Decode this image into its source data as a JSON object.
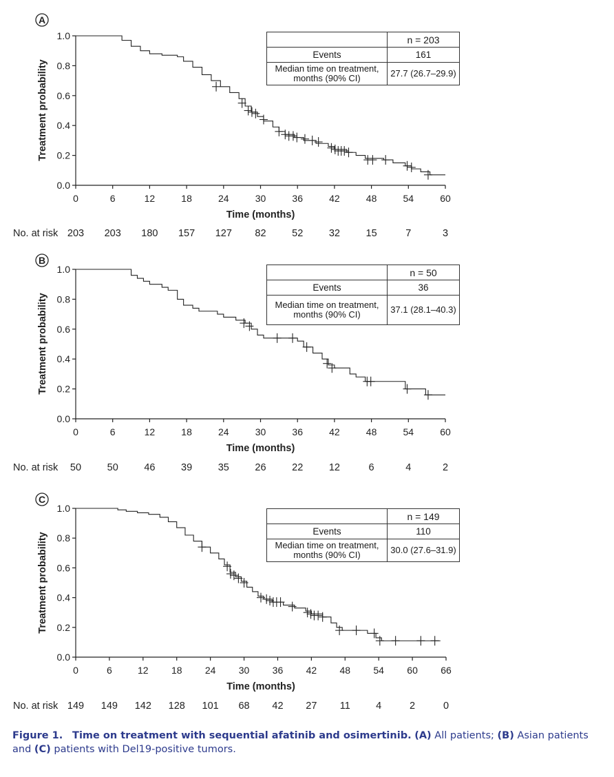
{
  "colors": {
    "line": "#222222",
    "caption": "#2c3a8c"
  },
  "caption": {
    "prefix": "Figure 1.",
    "title": "Time on treatment with sequential afatinib and osimertinib.",
    "a_label": "(A)",
    "a_text": " All patients; ",
    "b_label": "(B)",
    "b_text": " Asian patients and ",
    "c_label": "(C)",
    "c_text": " patients with Del19-positive tumors."
  },
  "chart_data": [
    {
      "type": "line",
      "panel_label": "A",
      "xlabel": "Time (months)",
      "ylabel": "Treatment probability",
      "xlim": [
        0,
        60
      ],
      "ylim": [
        0,
        1
      ],
      "xticks": [
        0,
        6,
        12,
        18,
        24,
        30,
        36,
        42,
        48,
        54,
        60
      ],
      "yticks": [
        "0.0",
        "0.2",
        "0.4",
        "0.6",
        "0.8",
        "1.0"
      ],
      "risk_label": "No. at risk",
      "risk_values": [
        "203",
        "203",
        "180",
        "157",
        "127",
        "82",
        "52",
        "32",
        "15",
        "7",
        "3"
      ],
      "table": {
        "header": "n = 203",
        "events_label": "Events",
        "events_value": "161",
        "median_label_1": "Median time on treatment,",
        "median_label_2": "months (90% CI)",
        "median_value": "27.7 (26.7–29.9)"
      },
      "curve": [
        [
          0,
          1.0
        ],
        [
          6.5,
          1.0
        ],
        [
          7.5,
          0.97
        ],
        [
          9,
          0.93
        ],
        [
          10.5,
          0.9
        ],
        [
          12,
          0.88
        ],
        [
          14,
          0.87
        ],
        [
          16.5,
          0.86
        ],
        [
          17.5,
          0.83
        ],
        [
          19,
          0.79
        ],
        [
          20.5,
          0.74
        ],
        [
          22,
          0.7
        ],
        [
          23.5,
          0.66
        ],
        [
          25,
          0.62
        ],
        [
          26.5,
          0.58
        ],
        [
          27.5,
          0.53
        ],
        [
          28.5,
          0.49
        ],
        [
          29.5,
          0.46
        ],
        [
          30.5,
          0.43
        ],
        [
          32,
          0.39
        ],
        [
          33,
          0.36
        ],
        [
          34,
          0.34
        ],
        [
          35.5,
          0.32
        ],
        [
          37,
          0.3
        ],
        [
          39,
          0.28
        ],
        [
          41,
          0.26
        ],
        [
          42,
          0.24
        ],
        [
          44,
          0.22
        ],
        [
          45.5,
          0.2
        ],
        [
          47,
          0.18
        ],
        [
          50,
          0.17
        ],
        [
          51.5,
          0.15
        ],
        [
          53.5,
          0.13
        ],
        [
          54.5,
          0.11
        ],
        [
          56,
          0.09
        ],
        [
          57.5,
          0.07
        ],
        [
          60,
          0.07
        ]
      ],
      "censors": [
        [
          22.8,
          0.66
        ],
        [
          27,
          0.55
        ],
        [
          28,
          0.5
        ],
        [
          28.6,
          0.49
        ],
        [
          29.2,
          0.48
        ],
        [
          30.5,
          0.44
        ],
        [
          33,
          0.36
        ],
        [
          34,
          0.34
        ],
        [
          34.6,
          0.33
        ],
        [
          35.3,
          0.33
        ],
        [
          35.9,
          0.32
        ],
        [
          37.2,
          0.31
        ],
        [
          38.4,
          0.3
        ],
        [
          39.4,
          0.29
        ],
        [
          41.5,
          0.25
        ],
        [
          42.1,
          0.24
        ],
        [
          42.6,
          0.23
        ],
        [
          43.1,
          0.23
        ],
        [
          43.6,
          0.23
        ],
        [
          44.3,
          0.22
        ],
        [
          47.4,
          0.17
        ],
        [
          48.2,
          0.17
        ],
        [
          50.3,
          0.17
        ],
        [
          53.8,
          0.13
        ],
        [
          54.5,
          0.12
        ],
        [
          57.2,
          0.07
        ]
      ]
    },
    {
      "type": "line",
      "panel_label": "B",
      "xlabel": "Time (months)",
      "ylabel": "Treatment probability",
      "xlim": [
        0,
        60
      ],
      "ylim": [
        0,
        1
      ],
      "xticks": [
        0,
        6,
        12,
        18,
        24,
        30,
        36,
        42,
        48,
        54,
        60
      ],
      "yticks": [
        "0.0",
        "0.2",
        "0.4",
        "0.6",
        "0.8",
        "1.0"
      ],
      "risk_label": "No. at risk",
      "risk_values": [
        "50",
        "50",
        "46",
        "39",
        "35",
        "26",
        "22",
        "12",
        "6",
        "4",
        "2"
      ],
      "table": {
        "header": "n = 50",
        "events_label": "Events",
        "events_value": "36",
        "median_label_1": "Median time on treatment,",
        "median_label_2": "months (90% CI)",
        "median_value": "37.1 (28.1–40.3)"
      },
      "curve": [
        [
          0,
          1.0
        ],
        [
          8,
          1.0
        ],
        [
          9,
          0.96
        ],
        [
          10,
          0.94
        ],
        [
          11,
          0.92
        ],
        [
          12,
          0.9
        ],
        [
          14,
          0.88
        ],
        [
          15,
          0.86
        ],
        [
          16.5,
          0.8
        ],
        [
          17.5,
          0.76
        ],
        [
          19,
          0.74
        ],
        [
          20,
          0.72
        ],
        [
          23,
          0.7
        ],
        [
          24,
          0.68
        ],
        [
          26,
          0.66
        ],
        [
          27.5,
          0.64
        ],
        [
          28.5,
          0.6
        ],
        [
          29.5,
          0.56
        ],
        [
          30.5,
          0.54
        ],
        [
          32,
          0.54
        ],
        [
          36,
          0.52
        ],
        [
          37,
          0.48
        ],
        [
          38.5,
          0.44
        ],
        [
          40,
          0.4
        ],
        [
          41,
          0.36
        ],
        [
          42,
          0.34
        ],
        [
          44.5,
          0.3
        ],
        [
          45.5,
          0.28
        ],
        [
          47,
          0.25
        ],
        [
          50,
          0.25
        ],
        [
          53.5,
          0.2
        ],
        [
          56,
          0.2
        ],
        [
          56.8,
          0.16
        ],
        [
          60,
          0.16
        ]
      ],
      "censors": [
        [
          27.3,
          0.64
        ],
        [
          28.2,
          0.62
        ],
        [
          32.7,
          0.54
        ],
        [
          35.2,
          0.54
        ],
        [
          37.5,
          0.48
        ],
        [
          40.8,
          0.37
        ],
        [
          41.6,
          0.34
        ],
        [
          47.3,
          0.25
        ],
        [
          47.9,
          0.25
        ],
        [
          53.8,
          0.2
        ],
        [
          57.2,
          0.16
        ]
      ]
    },
    {
      "type": "line",
      "panel_label": "C",
      "xlabel": "Time (months)",
      "ylabel": "Treatment probability",
      "xlim": [
        0,
        66
      ],
      "ylim": [
        0,
        1
      ],
      "xticks": [
        0,
        6,
        12,
        18,
        24,
        30,
        36,
        42,
        48,
        54,
        60,
        66
      ],
      "yticks": [
        "0.0",
        "0.2",
        "0.4",
        "0.6",
        "0.8",
        "1.0"
      ],
      "risk_label": "No. at risk",
      "risk_values": [
        "149",
        "149",
        "142",
        "128",
        "101",
        "68",
        "42",
        "27",
        "11",
        "4",
        "2",
        "0"
      ],
      "table": {
        "header": "n = 149",
        "events_label": "Events",
        "events_value": "110",
        "median_label_1": "Median time on treatment,",
        "median_label_2": "months (90% CI)",
        "median_value": "30.0 (27.6–31.9)"
      },
      "curve": [
        [
          0,
          1.0
        ],
        [
          6,
          1.0
        ],
        [
          7.5,
          0.99
        ],
        [
          9,
          0.98
        ],
        [
          11,
          0.97
        ],
        [
          13,
          0.96
        ],
        [
          15,
          0.94
        ],
        [
          16.5,
          0.91
        ],
        [
          18,
          0.87
        ],
        [
          19.5,
          0.82
        ],
        [
          21,
          0.78
        ],
        [
          22.5,
          0.74
        ],
        [
          24,
          0.7
        ],
        [
          25.5,
          0.66
        ],
        [
          26.5,
          0.62
        ],
        [
          27.5,
          0.57
        ],
        [
          28.5,
          0.54
        ],
        [
          29.5,
          0.51
        ],
        [
          30.5,
          0.47
        ],
        [
          31.5,
          0.44
        ],
        [
          32.5,
          0.41
        ],
        [
          33.5,
          0.39
        ],
        [
          35,
          0.37
        ],
        [
          37,
          0.35
        ],
        [
          39,
          0.33
        ],
        [
          41,
          0.31
        ],
        [
          42,
          0.29
        ],
        [
          44,
          0.27
        ],
        [
          45.5,
          0.23
        ],
        [
          46.5,
          0.2
        ],
        [
          47.5,
          0.18
        ],
        [
          52,
          0.16
        ],
        [
          53.5,
          0.13
        ],
        [
          54.5,
          0.11
        ],
        [
          65,
          0.11
        ]
      ],
      "censors": [
        [
          22.5,
          0.74
        ],
        [
          27,
          0.61
        ],
        [
          27.6,
          0.56
        ],
        [
          28.2,
          0.55
        ],
        [
          29,
          0.53
        ],
        [
          30,
          0.5
        ],
        [
          33,
          0.4
        ],
        [
          34,
          0.39
        ],
        [
          34.6,
          0.38
        ],
        [
          35.2,
          0.37
        ],
        [
          35.8,
          0.37
        ],
        [
          36.5,
          0.37
        ],
        [
          38.6,
          0.34
        ],
        [
          41.3,
          0.3
        ],
        [
          41.9,
          0.29
        ],
        [
          42.5,
          0.28
        ],
        [
          43.2,
          0.28
        ],
        [
          44,
          0.27
        ],
        [
          47,
          0.18
        ],
        [
          50,
          0.18
        ],
        [
          53.2,
          0.16
        ],
        [
          54.2,
          0.11
        ],
        [
          57,
          0.11
        ],
        [
          61.5,
          0.11
        ],
        [
          64,
          0.11
        ]
      ]
    }
  ]
}
